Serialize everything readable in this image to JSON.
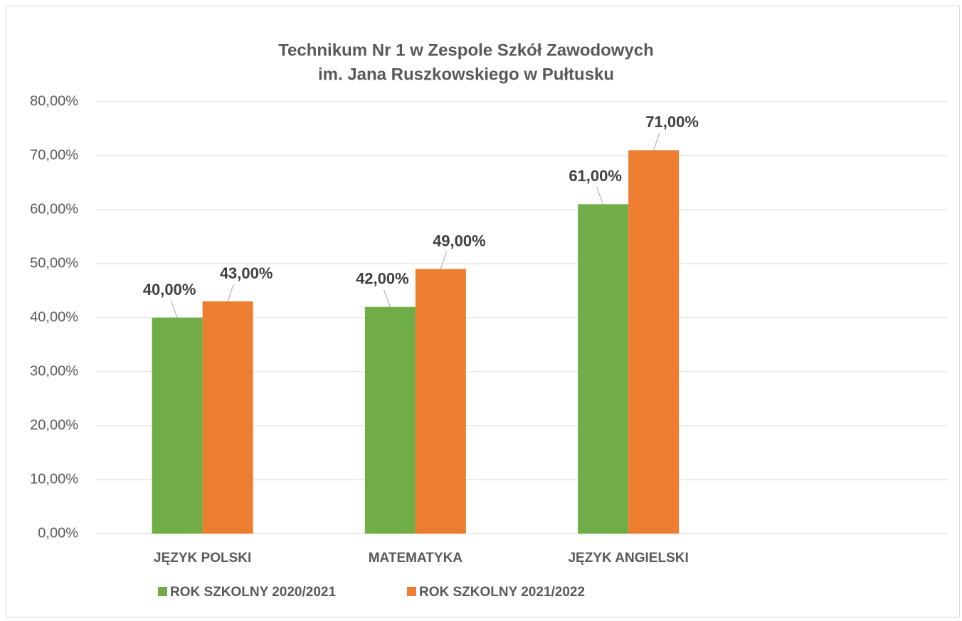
{
  "chart_data": {
    "type": "bar",
    "title": [
      "Technikum Nr 1 w Zespole Szkół Zawodowych",
      "im. Jana Ruszkowskiego w Pułtusku"
    ],
    "categories": [
      "JĘZYK POLSKI",
      "MATEMATYKA",
      "JĘZYK ANGIELSKI",
      null
    ],
    "series": [
      {
        "name": "ROK SZKOLNY 2020/2021",
        "color": "#70ad47",
        "values": [
          40,
          42,
          61,
          null
        ],
        "value_labels": [
          "40,00%",
          "42,00%",
          "61,00%",
          null
        ]
      },
      {
        "name": "ROK SZKOLNY 2021/2022",
        "color": "#ed7d31",
        "values": [
          43,
          49,
          71,
          null
        ],
        "value_labels": [
          "43,00%",
          "49,00%",
          "71,00%",
          null
        ]
      }
    ],
    "ylim": [
      0,
      80
    ],
    "yticks": [
      {
        "value": 0,
        "label": "0,00%"
      },
      {
        "value": 10,
        "label": "10,00%"
      },
      {
        "value": 20,
        "label": "20,00%"
      },
      {
        "value": 30,
        "label": "30,00%"
      },
      {
        "value": 40,
        "label": "40,00%"
      },
      {
        "value": 50,
        "label": "50,00%"
      },
      {
        "value": 60,
        "label": "60,00%"
      },
      {
        "value": 70,
        "label": "70,00%"
      },
      {
        "value": 80,
        "label": "80,00%"
      }
    ],
    "grid": true,
    "legend": "bottom"
  }
}
